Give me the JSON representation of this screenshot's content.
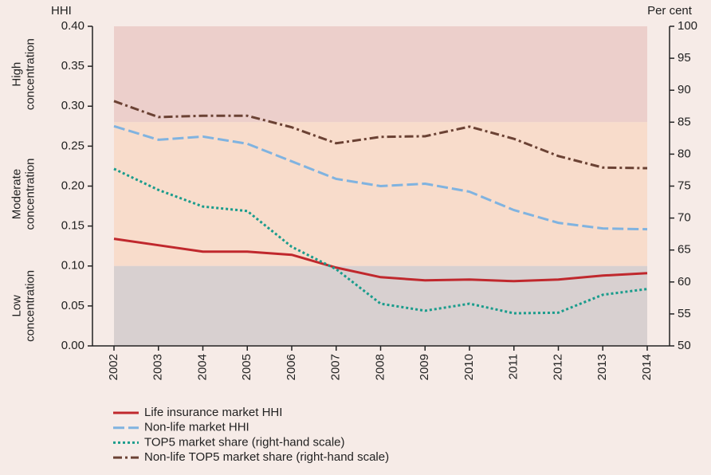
{
  "chart_data": {
    "type": "line",
    "ylabel": "HHI",
    "y2label": "Per cent",
    "categories": [
      "2002",
      "2003",
      "2004",
      "2005",
      "2006",
      "2007",
      "2008",
      "2009",
      "2010",
      "2011",
      "2012",
      "2013",
      "2014"
    ],
    "ylim": [
      0,
      0.4
    ],
    "yticks": [
      {
        "value": 0,
        "label": "0.00"
      },
      {
        "value": 0.05,
        "label": "0.05"
      },
      {
        "value": 0.1,
        "label": "0.10"
      },
      {
        "value": 0.15,
        "label": "0.15"
      },
      {
        "value": 0.2,
        "label": "0.20"
      },
      {
        "value": 0.25,
        "label": "0.25"
      },
      {
        "value": 0.3,
        "label": "0.30"
      },
      {
        "value": 0.35,
        "label": "0.35"
      },
      {
        "value": 0.4,
        "label": "0.40"
      }
    ],
    "y2lim": [
      50,
      100
    ],
    "y2ticks": [
      50,
      55,
      60,
      65,
      70,
      75,
      80,
      85,
      90,
      95,
      100
    ],
    "bands": [
      {
        "label_lines": [
          "High",
          "concentration"
        ],
        "from": 0.28,
        "to": 0.4,
        "color": "#eccfcb"
      },
      {
        "label_lines": [
          "Moderate",
          "concentration"
        ],
        "from": 0.1,
        "to": 0.28,
        "color": "#f8dccb"
      },
      {
        "label_lines": [
          "Low",
          "concentration"
        ],
        "from": 0,
        "to": 0.1,
        "color": "#d8d0d0"
      }
    ],
    "series": [
      {
        "name": "Life insurance market HHI",
        "color": "#c0282d",
        "dash": "solid",
        "values": [
          0.134,
          0.126,
          0.118,
          0.118,
          0.114,
          0.098,
          0.086,
          0.082,
          0.083,
          0.081,
          0.083,
          0.088,
          0.091
        ]
      },
      {
        "name": "Non-life market HHI",
        "color": "#80b3e0",
        "dash": "dashed",
        "values": [
          0.275,
          0.258,
          0.262,
          0.253,
          0.231,
          0.209,
          0.2,
          0.203,
          0.193,
          0.17,
          0.154,
          0.147,
          0.146
        ]
      },
      {
        "name": "TOP5 market share (right-hand scale)",
        "color": "#1a9c8c",
        "dash": "dotted",
        "axis": "y2",
        "values": [
          77.7,
          74.4,
          71.8,
          71.1,
          65.5,
          62.0,
          56.6,
          55.5,
          56.6,
          55.1,
          55.2,
          58.0,
          58.9
        ]
      },
      {
        "name": "Non-life TOP5 market share (right-hand scale)",
        "color": "#6b4234",
        "dash": "dashdot",
        "axis": "y2",
        "values": [
          88.3,
          85.8,
          86.0,
          86.0,
          84.2,
          81.7,
          82.7,
          82.8,
          84.3,
          82.4,
          79.7,
          77.9,
          77.8
        ]
      }
    ]
  }
}
